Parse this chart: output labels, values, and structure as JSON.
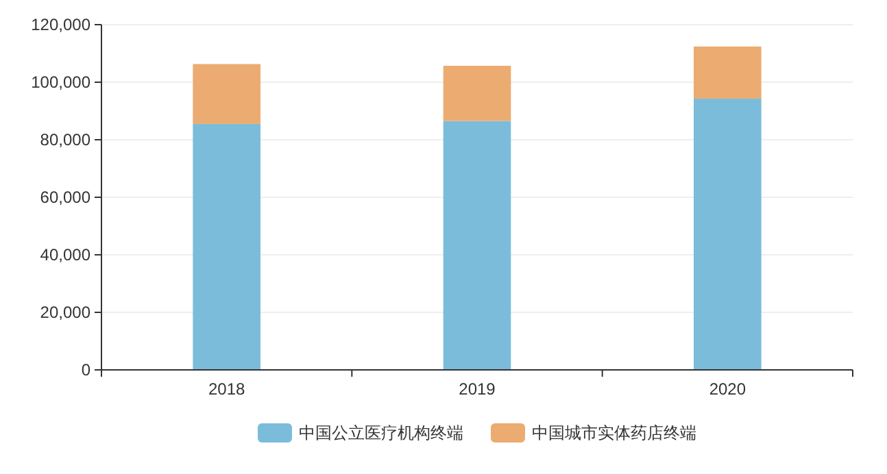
{
  "chart_data": {
    "type": "bar",
    "stacked": true,
    "categories": [
      "2018",
      "2019",
      "2020"
    ],
    "series": [
      {
        "name": "中国公立医疗机构终端",
        "color": "#7bbcdb",
        "values": [
          85500,
          86500,
          94300
        ]
      },
      {
        "name": "中国城市实体药店终端",
        "color": "#ecab70",
        "values": [
          20800,
          19200,
          18100
        ]
      }
    ],
    "ylim": [
      0,
      120000
    ],
    "yticks": [
      {
        "value": 0,
        "label": "0"
      },
      {
        "value": 20000,
        "label": "20,000"
      },
      {
        "value": 40000,
        "label": "40,000"
      },
      {
        "value": 60000,
        "label": "60,000"
      },
      {
        "value": 80000,
        "label": "80,000"
      },
      {
        "value": 100000,
        "label": "100,000"
      },
      {
        "value": 120000,
        "label": "120,000"
      }
    ],
    "grid": "y",
    "legend": "bottom"
  }
}
